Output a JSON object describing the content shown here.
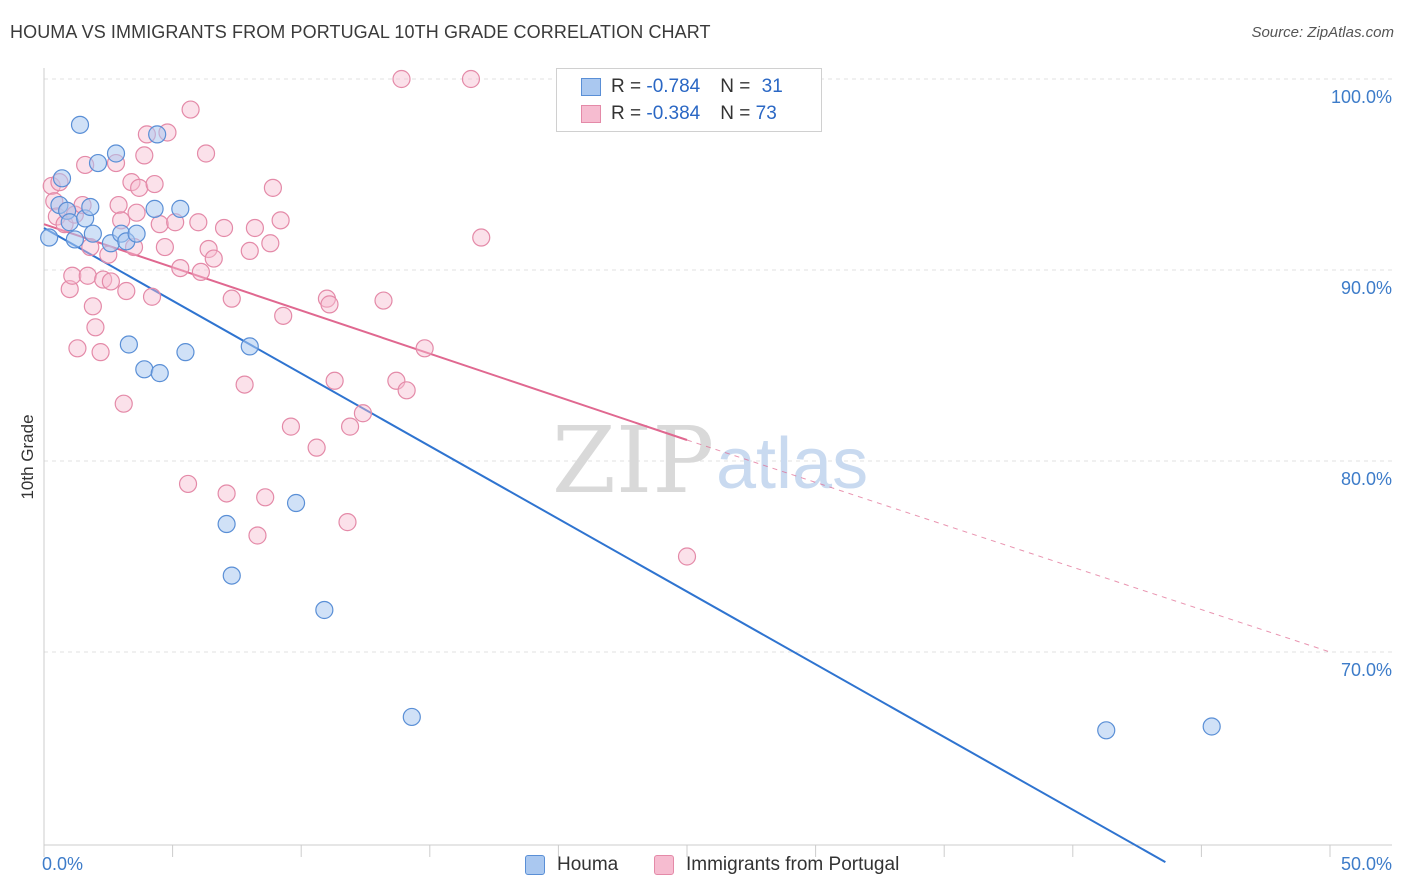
{
  "header": {
    "title": "HOUMA VS IMMIGRANTS FROM PORTUGAL 10TH GRADE CORRELATION CHART",
    "source": "Source: ZipAtlas.com"
  },
  "legend": {
    "rows": [
      {
        "r_label": "R = ",
        "r_value": "-0.784",
        "n_label": "N = ",
        "n_value": "31"
      },
      {
        "r_label": "R = ",
        "r_value": "-0.384",
        "n_label": "N = ",
        "n_value": "73"
      }
    ]
  },
  "watermark": {
    "zip": "ZIP",
    "atlas": "atlas"
  },
  "colors": {
    "houma_fill": "#aac8f0",
    "houma_stroke": "#5a8fd6",
    "houma_line": "#2f74d0",
    "portugal_fill": "#f6bcd0",
    "portugal_stroke": "#e48aa8",
    "portugal_line": "#e06890",
    "grid": "#e2e2e2",
    "axis": "#cccccc"
  },
  "chart_data": {
    "type": "scatter",
    "title": "HOUMA VS IMMIGRANTS FROM PORTUGAL 10TH GRADE CORRELATION CHART",
    "ylabel": "10th Grade",
    "xlabel": "",
    "xlim": [
      0,
      50
    ],
    "ylim": [
      60,
      100
    ],
    "x_tick_labels": [
      "0.0%",
      "50.0%"
    ],
    "y_ticks": [
      100,
      90,
      80,
      70
    ],
    "y_tick_labels": [
      "100.0%",
      "90.0%",
      "80.0%",
      "70.0%"
    ],
    "grid": true,
    "legend_placement": "top-center",
    "series": [
      {
        "name": "Houma",
        "points": [
          [
            0.2,
            91.7
          ],
          [
            0.6,
            93.4
          ],
          [
            0.7,
            94.8
          ],
          [
            0.9,
            93.1
          ],
          [
            1.0,
            92.5
          ],
          [
            1.2,
            91.6
          ],
          [
            1.4,
            97.6
          ],
          [
            1.6,
            92.7
          ],
          [
            1.8,
            93.3
          ],
          [
            1.9,
            91.9
          ],
          [
            2.1,
            95.6
          ],
          [
            2.6,
            91.4
          ],
          [
            2.8,
            96.1
          ],
          [
            3.0,
            91.9
          ],
          [
            3.2,
            91.5
          ],
          [
            3.3,
            86.1
          ],
          [
            3.6,
            91.9
          ],
          [
            3.9,
            84.8
          ],
          [
            4.4,
            97.1
          ],
          [
            4.3,
            93.2
          ],
          [
            4.5,
            84.6
          ],
          [
            5.3,
            93.2
          ],
          [
            5.5,
            85.7
          ],
          [
            7.1,
            76.7
          ],
          [
            7.3,
            74.0
          ],
          [
            8.0,
            86.0
          ],
          [
            9.8,
            77.8
          ],
          [
            10.9,
            72.2
          ],
          [
            14.3,
            66.6
          ],
          [
            41.3,
            65.9
          ],
          [
            45.4,
            66.1
          ]
        ],
        "trend": [
          [
            0,
            92.2
          ],
          [
            43.6,
            59.0
          ]
        ]
      },
      {
        "name": "Immigrants from Portugal",
        "points": [
          [
            0.3,
            94.4
          ],
          [
            0.4,
            93.6
          ],
          [
            0.5,
            92.8
          ],
          [
            0.6,
            94.6
          ],
          [
            0.8,
            92.4
          ],
          [
            0.9,
            93.1
          ],
          [
            1.0,
            89.0
          ],
          [
            1.1,
            89.7
          ],
          [
            1.2,
            92.9
          ],
          [
            1.3,
            85.9
          ],
          [
            1.5,
            93.4
          ],
          [
            1.6,
            95.5
          ],
          [
            1.7,
            89.7
          ],
          [
            1.8,
            91.2
          ],
          [
            1.9,
            88.1
          ],
          [
            2.0,
            87.0
          ],
          [
            2.2,
            85.7
          ],
          [
            2.3,
            89.5
          ],
          [
            2.5,
            90.8
          ],
          [
            2.6,
            89.4
          ],
          [
            2.8,
            95.6
          ],
          [
            2.9,
            93.4
          ],
          [
            3.0,
            92.6
          ],
          [
            3.1,
            83.0
          ],
          [
            3.2,
            88.9
          ],
          [
            3.4,
            94.6
          ],
          [
            3.5,
            91.2
          ],
          [
            3.6,
            93.0
          ],
          [
            3.7,
            94.3
          ],
          [
            3.9,
            96.0
          ],
          [
            4.0,
            97.1
          ],
          [
            4.2,
            88.6
          ],
          [
            4.3,
            94.5
          ],
          [
            4.5,
            92.4
          ],
          [
            4.7,
            91.2
          ],
          [
            4.8,
            97.2
          ],
          [
            5.1,
            92.5
          ],
          [
            5.3,
            90.1
          ],
          [
            5.6,
            78.8
          ],
          [
            5.7,
            98.4
          ],
          [
            6.0,
            92.5
          ],
          [
            6.1,
            89.9
          ],
          [
            6.3,
            96.1
          ],
          [
            6.4,
            91.1
          ],
          [
            6.6,
            90.6
          ],
          [
            7.0,
            92.2
          ],
          [
            7.1,
            78.3
          ],
          [
            7.3,
            88.5
          ],
          [
            7.8,
            84.0
          ],
          [
            8.0,
            91.0
          ],
          [
            8.2,
            92.2
          ],
          [
            8.3,
            76.1
          ],
          [
            8.6,
            78.1
          ],
          [
            8.8,
            91.4
          ],
          [
            8.9,
            94.3
          ],
          [
            9.2,
            92.6
          ],
          [
            9.3,
            87.6
          ],
          [
            9.6,
            81.8
          ],
          [
            10.6,
            80.7
          ],
          [
            11.0,
            88.5
          ],
          [
            11.1,
            88.2
          ],
          [
            11.3,
            84.2
          ],
          [
            11.8,
            76.8
          ],
          [
            11.9,
            81.8
          ],
          [
            12.4,
            82.5
          ],
          [
            13.2,
            88.4
          ],
          [
            13.7,
            84.2
          ],
          [
            13.9,
            100.0
          ],
          [
            14.1,
            83.7
          ],
          [
            16.6,
            100.0
          ],
          [
            17.0,
            91.7
          ],
          [
            25.0,
            75.0
          ],
          [
            14.8,
            85.9
          ]
        ],
        "trend": [
          [
            0,
            92.4
          ],
          [
            25.0,
            81.1
          ]
        ],
        "trend_extension": [
          [
            25.0,
            81.1
          ],
          [
            50.0,
            70.0
          ]
        ]
      }
    ]
  }
}
